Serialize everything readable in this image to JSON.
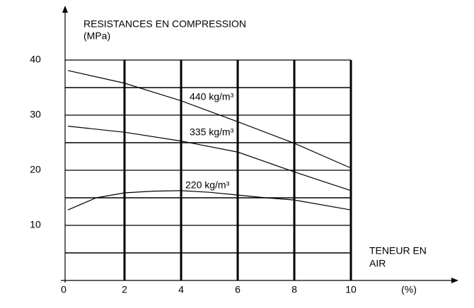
{
  "chart_data": {
    "type": "line",
    "y_label": [
      "RESISTANCES EN COMPRESSION",
      "(MPa)"
    ],
    "x_label": [
      "TENEUR EN",
      "AIR"
    ],
    "x_unit": "(%)",
    "xlim": [
      0,
      10
    ],
    "xticks": [
      0,
      2,
      4,
      6,
      8,
      10
    ],
    "ylim": [
      0,
      40
    ],
    "yticks": [
      10,
      20,
      30,
      40
    ],
    "y_minor_grid": [
      5,
      15,
      25,
      35
    ],
    "grid": true,
    "series": [
      {
        "name": "440 kg/m³",
        "color": "#000000",
        "x": [
          0,
          2,
          4,
          6,
          8,
          10
        ],
        "values": [
          38.1,
          35.8,
          32.6,
          28.8,
          24.9,
          20.4
        ]
      },
      {
        "name": "335 kg/m³",
        "color": "#000000",
        "x": [
          0,
          2,
          4,
          6,
          8,
          10
        ],
        "values": [
          28,
          26.9,
          25.3,
          23.3,
          19.7,
          16.3
        ]
      },
      {
        "name": "220 kg/m³",
        "color": "#000000",
        "x": [
          0,
          1,
          2,
          3,
          4,
          5,
          6,
          7,
          8,
          10
        ],
        "values": [
          12.8,
          15,
          15.9,
          16.2,
          16.3,
          16,
          15.5,
          15,
          14.6,
          12.8
        ]
      }
    ]
  }
}
